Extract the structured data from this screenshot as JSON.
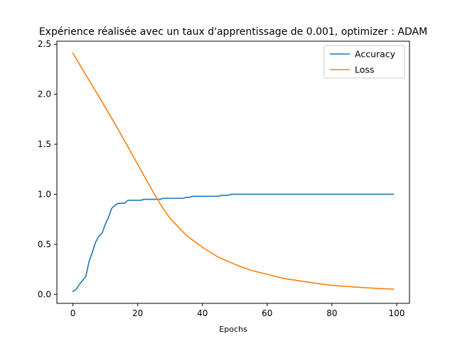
{
  "chart_data": {
    "type": "line",
    "title": "Expérience réalisée avec un taux d'apprentissage de 0.001, optimizer : ADAM",
    "xlabel": "Epochs",
    "ylabel": "",
    "xlim": [
      -4.95,
      103.95
    ],
    "ylim": [
      -0.09,
      2.53
    ],
    "x_ticks": [
      0,
      20,
      40,
      60,
      80,
      100
    ],
    "y_ticks": [
      0.0,
      0.5,
      1.0,
      1.5,
      2.0,
      2.5
    ],
    "x_tick_labels": [
      "0",
      "20",
      "40",
      "60",
      "80",
      "100"
    ],
    "y_tick_labels": [
      "0.0",
      "0.5",
      "1.0",
      "1.5",
      "2.0",
      "2.5"
    ],
    "grid": false,
    "legend_position": "top-right",
    "series": [
      {
        "name": "Accuracy",
        "color": "#1f77b4",
        "x": [
          0,
          1,
          2,
          3,
          4,
          5,
          6,
          7,
          8,
          9,
          10,
          11,
          12,
          13,
          14,
          15,
          16,
          17,
          18,
          19,
          20,
          21,
          22,
          23,
          24,
          25,
          26,
          27,
          28,
          29,
          30,
          31,
          32,
          33,
          34,
          35,
          36,
          37,
          38,
          39,
          40,
          41,
          42,
          43,
          44,
          45,
          46,
          47,
          48,
          49,
          50,
          55,
          60,
          65,
          70,
          75,
          80,
          85,
          90,
          95,
          99
        ],
        "values": [
          0.03,
          0.05,
          0.1,
          0.14,
          0.18,
          0.33,
          0.42,
          0.52,
          0.58,
          0.61,
          0.7,
          0.77,
          0.86,
          0.89,
          0.91,
          0.91,
          0.91,
          0.94,
          0.94,
          0.94,
          0.94,
          0.94,
          0.95,
          0.95,
          0.95,
          0.95,
          0.95,
          0.95,
          0.96,
          0.96,
          0.96,
          0.96,
          0.96,
          0.96,
          0.96,
          0.97,
          0.97,
          0.98,
          0.98,
          0.98,
          0.98,
          0.98,
          0.98,
          0.98,
          0.98,
          0.98,
          0.99,
          0.99,
          0.99,
          1.0,
          1.0,
          1.0,
          1.0,
          1.0,
          1.0,
          1.0,
          1.0,
          1.0,
          1.0,
          1.0,
          1.0
        ]
      },
      {
        "name": "Loss",
        "color": "#ff7f0e",
        "x": [
          0,
          5,
          10,
          15,
          20,
          25,
          28,
          30,
          35,
          40,
          45,
          50,
          55,
          60,
          65,
          70,
          75,
          80,
          85,
          90,
          95,
          99
        ],
        "values": [
          2.41,
          2.14,
          1.87,
          1.59,
          1.3,
          1.01,
          0.85,
          0.76,
          0.59,
          0.47,
          0.37,
          0.3,
          0.24,
          0.2,
          0.16,
          0.135,
          0.11,
          0.09,
          0.078,
          0.067,
          0.058,
          0.052
        ]
      }
    ]
  }
}
